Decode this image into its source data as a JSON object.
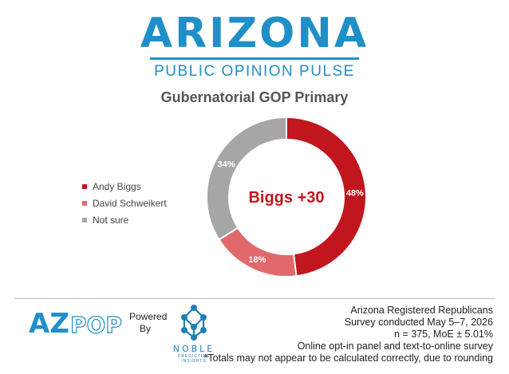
{
  "brand": {
    "name": "ARIZONA",
    "subtitle": "PUBLIC OPINION PULSE",
    "color": "#1f8fc8"
  },
  "chart_data": {
    "type": "pie",
    "title": "Gubernatorial GOP Primary",
    "center_label": "Biggs +30",
    "legend_position": "left",
    "series": [
      {
        "name": "Andy Biggs",
        "value": 48,
        "label": "48%",
        "color": "#c2161e"
      },
      {
        "name": "David Schweikert",
        "value": 18,
        "label": "18%",
        "color": "#e2696b"
      },
      {
        "name": "Not sure",
        "value": 34,
        "label": "34%",
        "color": "#a6a6a6"
      }
    ]
  },
  "footer": {
    "logo_text": "AZPOP",
    "powered_by": "Powered By",
    "partner_name": "NOBLE",
    "partner_tagline": "PREDICTIVE INSIGHTS",
    "notes": [
      "Arizona Registered Republicans",
      "Survey conducted May 5–7, 2026",
      "n = 375, MoE ± 5.01%",
      "Online opt-in panel and text-to-online survey",
      "*Totals may not appear to be calculated correctly, due to rounding"
    ]
  }
}
